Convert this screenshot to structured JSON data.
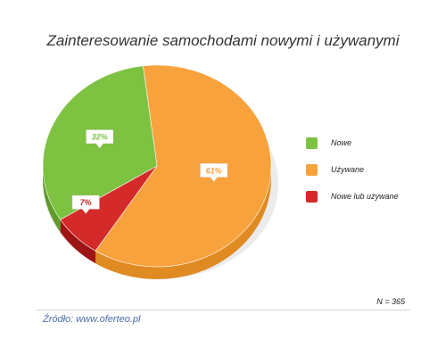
{
  "chart_data": {
    "type": "pie",
    "title": "Zainteresowanie samochodami nowymi i używanymi",
    "slices": [
      {
        "label": "Nowe",
        "value": 32,
        "display": "32%",
        "color": "#7ec242",
        "side_color": "#5f9a2a"
      },
      {
        "label": "Używane",
        "value": 61,
        "display": "61%",
        "color": "#f7a23c",
        "side_color": "#e08a22"
      },
      {
        "label": "Nowe lub używane",
        "value": 7,
        "display": "7%",
        "color": "#d42a2a",
        "side_color": "#9e1515"
      }
    ],
    "legend_position": "right",
    "note": "N = 365",
    "source": "Źródło: www.oferteo.pl"
  }
}
